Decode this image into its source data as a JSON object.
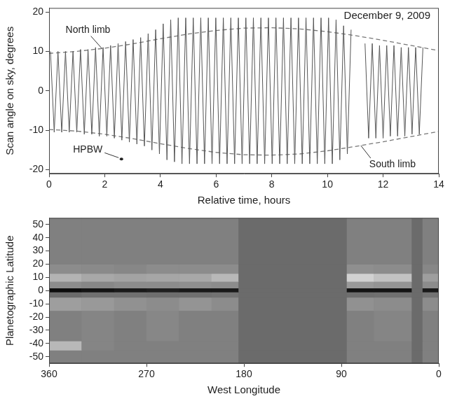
{
  "chart_data": [
    {
      "type": "line",
      "title": "December 9, 2009",
      "x_label": "Relative time, hours",
      "y_label": "Scan angle on sky, degrees",
      "xlim": [
        0,
        14
      ],
      "xticks": [
        0,
        2,
        4,
        6,
        8,
        10,
        12,
        14
      ],
      "ylim": [
        -21,
        21
      ],
      "yticks": [
        -20,
        -10,
        0,
        10,
        20
      ],
      "grid": false,
      "series": [
        {
          "color": "#555555",
          "line_style": "solid",
          "x": [
            0.05,
            0.185,
            0.32,
            0.455,
            0.59,
            0.725,
            0.86,
            0.995,
            1.13,
            1.265,
            1.4,
            1.535,
            1.67,
            1.805,
            1.94,
            2.075,
            2.21,
            2.345,
            2.48,
            2.615,
            2.75,
            2.885,
            3.02,
            3.155,
            3.29,
            3.425,
            3.56,
            3.695,
            3.83,
            3.965,
            4.1,
            4.235,
            4.37,
            4.505,
            4.64,
            4.775,
            4.91,
            5.045,
            5.18,
            5.315,
            5.45,
            5.585,
            5.72,
            5.855,
            5.99,
            6.125,
            6.26,
            6.395,
            6.53,
            6.665,
            6.8,
            6.935,
            7.07,
            7.205,
            7.34,
            7.475,
            7.61,
            7.745,
            7.88,
            8.015,
            8.15,
            8.285,
            8.42,
            8.555,
            8.69,
            8.825,
            8.96,
            9.095,
            9.23,
            9.365,
            9.5,
            9.635,
            9.77,
            9.905,
            10.04,
            10.175,
            10.31,
            10.445,
            10.58,
            10.715,
            10.85,
            11.1,
            11.35,
            11.48,
            11.61,
            11.74,
            11.87,
            12.0,
            12.13,
            12.26,
            12.39,
            12.52,
            12.65,
            12.78,
            12.91,
            13.04,
            13.17,
            13.3,
            13.43
          ],
          "values": [
            10,
            -10.5,
            10,
            -10.5,
            10,
            -10.5,
            10,
            -10.5,
            10.5,
            -11,
            10.5,
            -11,
            11,
            -11.5,
            11,
            -11.5,
            11.5,
            -12,
            12,
            -12.5,
            12.5,
            -13,
            13,
            -13.5,
            13.5,
            -14,
            14.5,
            -15,
            15.5,
            -16,
            17,
            -17.5,
            18,
            -18,
            18.5,
            -18.5,
            18.5,
            -18.5,
            18.5,
            -18.5,
            18.5,
            -18.5,
            18.5,
            -18.5,
            18.5,
            -18.5,
            18.5,
            -18.5,
            18.5,
            -18.5,
            18.5,
            -18.5,
            18.5,
            -18.5,
            18.5,
            -18.5,
            18.5,
            -18.5,
            18.5,
            -18.5,
            18.5,
            -18.5,
            18.5,
            -18.5,
            18.5,
            -18.5,
            18.5,
            -18.5,
            18.5,
            -18.5,
            18.5,
            -18.5,
            18.5,
            -18.5,
            18.5,
            -18.5,
            18,
            -17.5,
            16.5,
            -16,
            15.5,
            null,
            12,
            -12,
            12,
            -12,
            11.5,
            -12,
            11.5,
            -11.5,
            11.5,
            -11.5,
            11,
            -11.5,
            11,
            -11,
            11,
            -11,
            11
          ]
        },
        {
          "name": "North limb",
          "color": "#777777",
          "line_style": "dashed",
          "label_x": 1.9,
          "x": [
            0,
            1,
            2,
            3,
            4,
            5,
            6,
            7,
            8,
            9,
            10,
            11,
            12,
            13,
            14
          ],
          "values": [
            9.5,
            10,
            10.8,
            11.9,
            13.2,
            14.4,
            15.3,
            15.9,
            16,
            15.7,
            15,
            14,
            12.8,
            11.5,
            10.2
          ]
        },
        {
          "name": "South limb",
          "color": "#777777",
          "line_style": "dashed",
          "label_x": 11.2,
          "x": [
            0,
            1,
            2,
            3,
            4,
            5,
            6,
            7,
            8,
            9,
            10,
            11,
            12,
            13,
            14
          ],
          "values": [
            -9.8,
            -10.2,
            -11,
            -12.1,
            -13.4,
            -14.6,
            -15.6,
            -16.2,
            -16.3,
            -16,
            -15.2,
            -14.1,
            -12.9,
            -11.6,
            -10.3
          ]
        }
      ],
      "annotations": [
        {
          "text": "HPBW",
          "x": 2.6,
          "y": -17.3
        }
      ]
    },
    {
      "type": "heatmap",
      "x_label": "West Longitude",
      "y_label": "Planetographic Latitude",
      "xlim": [
        360,
        0
      ],
      "xticks": [
        360,
        270,
        180,
        90,
        0
      ],
      "ylim": [
        -55,
        55
      ],
      "yticks": [
        -50,
        -40,
        -30,
        -20,
        -10,
        0,
        10,
        20,
        30,
        40,
        50
      ],
      "grid": false,
      "x_bins": [
        360,
        330,
        300,
        270,
        240,
        210,
        185,
        85,
        60,
        25,
        15,
        0
      ],
      "y_bins": [
        -55,
        -45,
        -38,
        -15,
        -5,
        -1,
        2,
        7,
        13,
        20,
        55
      ],
      "cell_range": [
        0,
        1
      ],
      "cells": [
        [
          0.5,
          0.5,
          0.5,
          0.5,
          0.5,
          0.5,
          null,
          0.5,
          0.5,
          null,
          0.5
        ],
        [
          0.72,
          0.52,
          0.5,
          0.5,
          0.5,
          0.5,
          null,
          0.5,
          0.5,
          null,
          0.5
        ],
        [
          0.5,
          0.52,
          0.5,
          0.53,
          0.5,
          0.5,
          null,
          0.5,
          0.52,
          null,
          0.5
        ],
        [
          0.62,
          0.6,
          0.57,
          0.55,
          0.58,
          0.55,
          null,
          0.57,
          0.55,
          null,
          0.55
        ],
        [
          0.42,
          0.44,
          0.44,
          0.43,
          0.44,
          0.45,
          null,
          0.43,
          0.44,
          null,
          0.45
        ],
        [
          0.05,
          0.08,
          0.1,
          0.12,
          0.1,
          0.1,
          null,
          0.08,
          0.08,
          null,
          0.1
        ],
        [
          0.55,
          0.53,
          0.55,
          0.55,
          0.56,
          0.55,
          null,
          0.6,
          0.58,
          null,
          0.55
        ],
        [
          0.7,
          0.66,
          0.64,
          0.65,
          0.66,
          0.72,
          null,
          0.82,
          0.76,
          null,
          0.62
        ],
        [
          0.55,
          0.54,
          0.53,
          0.55,
          0.55,
          0.55,
          null,
          0.56,
          0.55,
          null,
          0.53
        ],
        [
          0.5,
          0.5,
          0.5,
          0.5,
          0.5,
          0.5,
          null,
          0.5,
          0.5,
          null,
          0.5
        ]
      ]
    }
  ]
}
